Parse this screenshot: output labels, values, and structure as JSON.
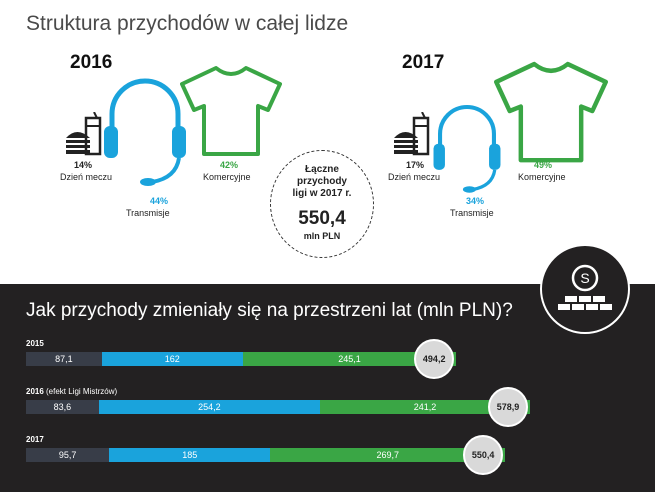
{
  "title": "Struktura przychodów w całej lidze",
  "pies": [
    {
      "year": "2016",
      "match_pct": "14%",
      "match_label": "Dzień meczu",
      "tv_pct": "44%",
      "tv_label": "Transmisje",
      "com_pct": "42%",
      "com_label": "Komercyjne"
    },
    {
      "year": "2017",
      "match_pct": "17%",
      "match_label": "Dzień meczu",
      "tv_pct": "34%",
      "tv_label": "Transmisje",
      "com_pct": "49%",
      "com_label": "Komercyjne"
    }
  ],
  "total": {
    "label": "Łączne\nprzychody\nligi w 2017 r.",
    "value": "550,4",
    "unit": "mln PLN"
  },
  "bars_title": "Jak przychody zmieniały się na przestrzeni lat (mln PLN)?",
  "colors": {
    "match": "#383d48",
    "transmission": "#1aa3dc",
    "commercial": "#3aa645",
    "background_dark": "#232122"
  },
  "icons": [
    "burger-drink-icon",
    "headset-icon",
    "tshirt-icon",
    "money-wall-icon"
  ],
  "chart_data": {
    "type": "bar",
    "stacked": true,
    "orientation": "horizontal",
    "title": "Jak przychody zmieniały się na przestrzeni lat (mln PLN)?",
    "categories": [
      "2015",
      "2016",
      "2017"
    ],
    "category_notes": [
      "",
      "(efekt Ligi Mistrzów)",
      ""
    ],
    "series": [
      {
        "values": [
          87.1,
          83.6,
          95.7
        ],
        "labels": [
          "87,1",
          "83,6",
          "95,7"
        ],
        "color": "#383d48"
      },
      {
        "values": [
          162,
          254.2,
          185
        ],
        "labels": [
          "162",
          "254,2",
          "185"
        ],
        "color": "#1aa3dc"
      },
      {
        "values": [
          245.1,
          241.2,
          269.7
        ],
        "labels": [
          "245,1",
          "241,2",
          "269,7"
        ],
        "color": "#3aa645"
      }
    ],
    "totals": [
      494.2,
      578.9,
      550.4
    ],
    "total_labels": [
      "494,2",
      "578,9",
      "550,4"
    ],
    "xlim": [
      0,
      590
    ]
  }
}
